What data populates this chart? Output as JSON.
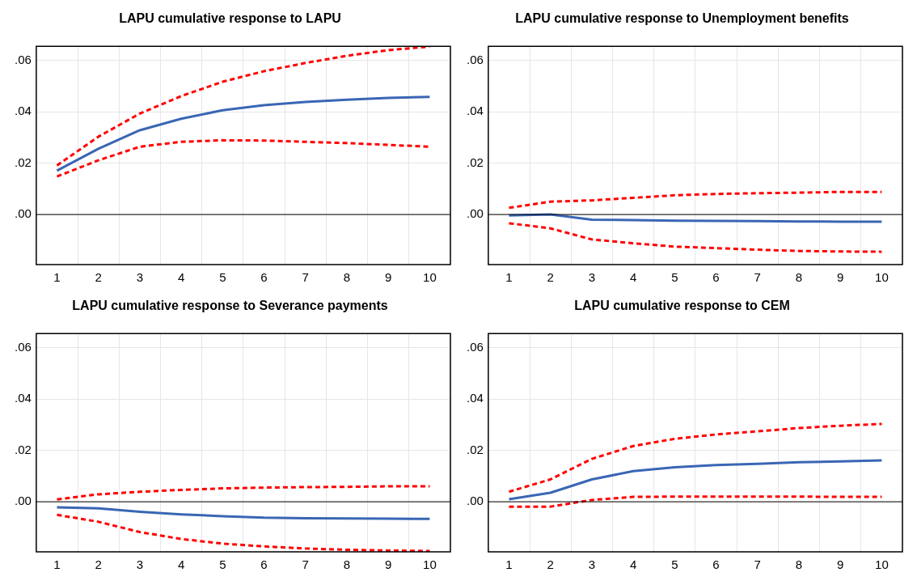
{
  "chart_data": [
    {
      "type": "line",
      "title": "LAPU cumulative response to LAPU",
      "categories": [
        "1",
        "2",
        "3",
        "4",
        "5",
        "6",
        "7",
        "8",
        "9",
        "10"
      ],
      "ylim": [
        -0.0195,
        0.0655
      ],
      "yticks": [
        {
          "value": 0,
          "label": ".00"
        },
        {
          "value": 0.02,
          "label": ".02"
        },
        {
          "value": 0.04,
          "label": ".04"
        },
        {
          "value": 0.06,
          "label": ".06"
        }
      ],
      "grid": true,
      "ref_lines": [
        {
          "axis": "y",
          "value": 0,
          "color": "#000000"
        }
      ],
      "series": [
        {
          "color": "#3a66b4",
          "line_style": "solid",
          "values": [
            0.0171,
            0.0256,
            0.0328,
            0.0373,
            0.0406,
            0.0426,
            0.0438,
            0.0447,
            0.0454,
            0.0458
          ]
        },
        {
          "color": "#ff0000",
          "line_style": "dashed",
          "values": [
            0.0191,
            0.0303,
            0.0393,
            0.0461,
            0.0517,
            0.0558,
            0.059,
            0.0618,
            0.064,
            0.0654
          ]
        },
        {
          "color": "#ff0000",
          "line_style": "dashed",
          "values": [
            0.0148,
            0.0211,
            0.0264,
            0.0283,
            0.0289,
            0.0288,
            0.0283,
            0.0278,
            0.0271,
            0.0264
          ]
        }
      ]
    },
    {
      "type": "line",
      "title": "LAPU cumulative response to Unemployment benefits",
      "categories": [
        "1",
        "2",
        "3",
        "4",
        "5",
        "6",
        "7",
        "8",
        "9",
        "10"
      ],
      "ylim": [
        -0.0195,
        0.0655
      ],
      "yticks": [
        {
          "value": 0,
          "label": ".00"
        },
        {
          "value": 0.02,
          "label": ".02"
        },
        {
          "value": 0.04,
          "label": ".04"
        },
        {
          "value": 0.06,
          "label": ".06"
        }
      ],
      "grid": true,
      "ref_lines": [
        {
          "axis": "y",
          "value": 0,
          "color": "#000000"
        }
      ],
      "series": [
        {
          "color": "#3a66b4",
          "line_style": "solid",
          "values": [
            -0.0004,
            0.0,
            -0.002,
            -0.0022,
            -0.0024,
            -0.0025,
            -0.0026,
            -0.0027,
            -0.0028,
            -0.0028
          ]
        },
        {
          "color": "#ff0000",
          "line_style": "dashed",
          "values": [
            0.0026,
            0.005,
            0.0055,
            0.0065,
            0.0075,
            0.008,
            0.0083,
            0.0085,
            0.0088,
            0.0088
          ]
        },
        {
          "color": "#ff0000",
          "line_style": "dashed",
          "values": [
            -0.0034,
            -0.0054,
            -0.0097,
            -0.0112,
            -0.0125,
            -0.0131,
            -0.0137,
            -0.0142,
            -0.0144,
            -0.0145
          ]
        }
      ]
    },
    {
      "type": "line",
      "title": "LAPU cumulative response to Severance payments",
      "categories": [
        "1",
        "2",
        "3",
        "4",
        "5",
        "6",
        "7",
        "8",
        "9",
        "10"
      ],
      "ylim": [
        -0.0195,
        0.0655
      ],
      "yticks": [
        {
          "value": 0,
          "label": ".00"
        },
        {
          "value": 0.02,
          "label": ".02"
        },
        {
          "value": 0.04,
          "label": ".04"
        },
        {
          "value": 0.06,
          "label": ".06"
        }
      ],
      "grid": true,
      "ref_lines": [
        {
          "axis": "y",
          "value": 0,
          "color": "#000000"
        }
      ],
      "series": [
        {
          "color": "#3a66b4",
          "line_style": "solid",
          "values": [
            -0.0022,
            -0.0026,
            -0.0039,
            -0.0049,
            -0.0056,
            -0.0062,
            -0.0064,
            -0.0065,
            -0.0066,
            -0.0067
          ]
        },
        {
          "color": "#ff0000",
          "line_style": "dashed",
          "values": [
            0.0009,
            0.0029,
            0.0039,
            0.0046,
            0.0052,
            0.0055,
            0.0057,
            0.0058,
            0.006,
            0.006
          ]
        },
        {
          "color": "#ff0000",
          "line_style": "dashed",
          "values": [
            -0.0051,
            -0.0078,
            -0.0118,
            -0.0145,
            -0.0163,
            -0.0174,
            -0.0182,
            -0.0187,
            -0.019,
            -0.0192
          ]
        }
      ]
    },
    {
      "type": "line",
      "title": "LAPU cumulative response to CEM",
      "categories": [
        "1",
        "2",
        "3",
        "4",
        "5",
        "6",
        "7",
        "8",
        "9",
        "10"
      ],
      "ylim": [
        -0.0195,
        0.0655
      ],
      "yticks": [
        {
          "value": 0,
          "label": ".00"
        },
        {
          "value": 0.02,
          "label": ".02"
        },
        {
          "value": 0.04,
          "label": ".04"
        },
        {
          "value": 0.06,
          "label": ".06"
        }
      ],
      "grid": true,
      "ref_lines": [
        {
          "axis": "y",
          "value": 0,
          "color": "#000000"
        }
      ],
      "series": [
        {
          "color": "#3a66b4",
          "line_style": "solid",
          "values": [
            0.001,
            0.0035,
            0.0087,
            0.0119,
            0.0134,
            0.0143,
            0.0148,
            0.0154,
            0.0157,
            0.0161
          ]
        },
        {
          "color": "#ff0000",
          "line_style": "dashed",
          "values": [
            0.0039,
            0.0087,
            0.0167,
            0.0217,
            0.0245,
            0.0262,
            0.0274,
            0.0287,
            0.0296,
            0.0303
          ]
        },
        {
          "color": "#ff0000",
          "line_style": "dashed",
          "values": [
            -0.0019,
            -0.0019,
            0.0007,
            0.0019,
            0.002,
            0.002,
            0.002,
            0.002,
            0.0019,
            0.0019
          ]
        }
      ]
    }
  ]
}
